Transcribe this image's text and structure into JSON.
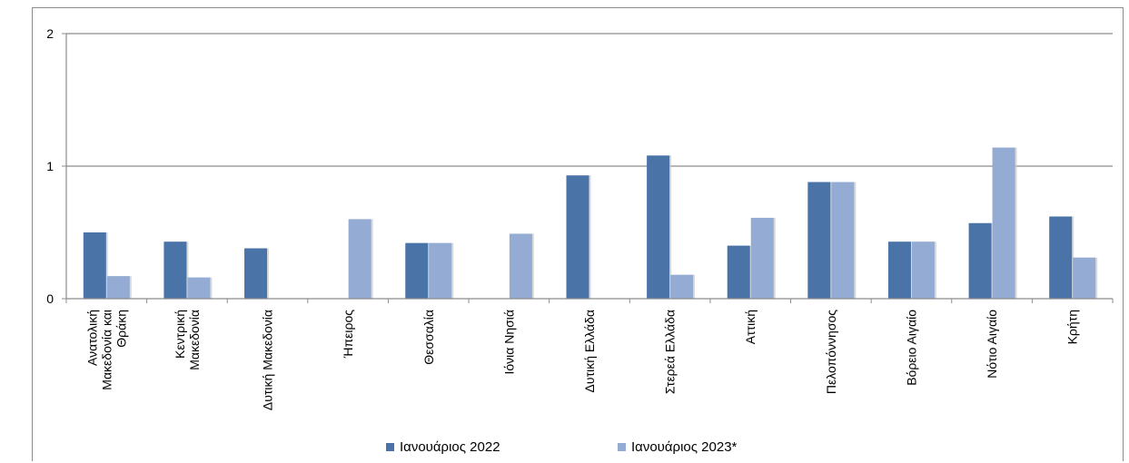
{
  "chart_data": {
    "type": "bar",
    "categories": [
      [
        "Ανατολική",
        "Μακεδονία και",
        "Θράκη"
      ],
      [
        "Κεντρική",
        "Μακεδονία"
      ],
      [
        "Δυτική Μακεδονία"
      ],
      [
        "Ήπειρος"
      ],
      [
        "Θεσσαλία"
      ],
      [
        "Ιόνια Νησιά"
      ],
      [
        "Δυτική Ελλάδα"
      ],
      [
        "Στερεά Ελλάδα"
      ],
      [
        "Αττική"
      ],
      [
        "Πελοπόννησος"
      ],
      [
        "Βόρειο Αιγαίο"
      ],
      [
        "Νότιο Αιγαίο"
      ],
      [
        "Κρήτη"
      ]
    ],
    "series": [
      {
        "name": "Ιανουάριος 2022",
        "color": "#4a73a8",
        "values": [
          0.5,
          0.43,
          0.38,
          0,
          0.42,
          0,
          0.93,
          1.08,
          0.4,
          0.88,
          0.43,
          0.57,
          0.62
        ]
      },
      {
        "name": "Ιανουάριος 2023*",
        "color": "#94abd3",
        "values": [
          0.17,
          0.16,
          0,
          0.6,
          0.42,
          0.49,
          0,
          0.18,
          0.61,
          0.88,
          0.43,
          1.14,
          0.31
        ]
      }
    ],
    "ylim": [
      0,
      2
    ],
    "yticks": [
      0,
      1,
      2
    ],
    "grid": true,
    "legend_position": "bottom"
  }
}
